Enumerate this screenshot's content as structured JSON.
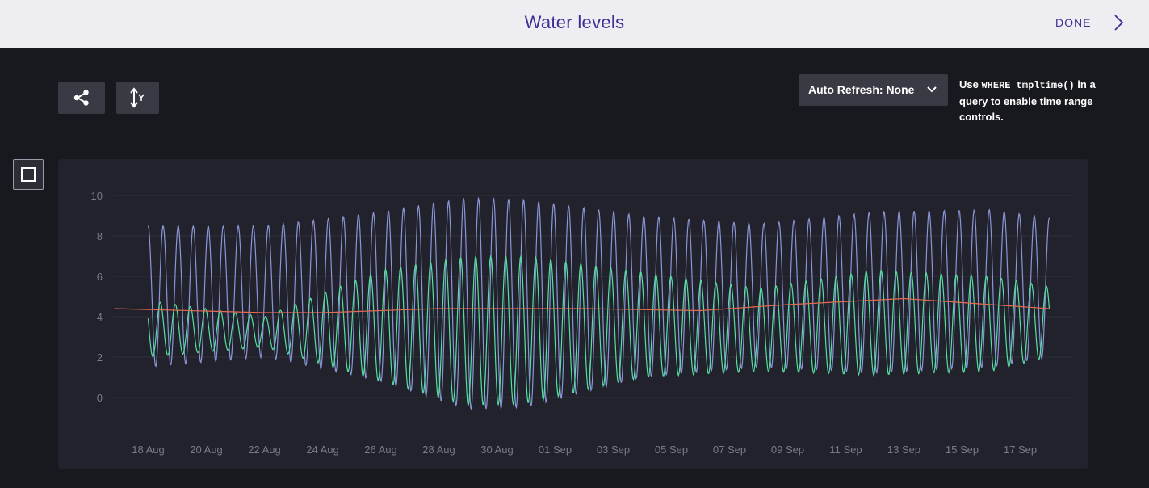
{
  "header": {
    "title": "Water levels",
    "done_label": "DONE"
  },
  "toolbar": {
    "share_icon": "share-icon",
    "axis_icon": "y-axis-toggle-icon",
    "refresh_label": "Auto Refresh: None",
    "hint_prefix": "Use ",
    "hint_code": "WHERE tmpltime()",
    "hint_suffix": " in a query to enable time range controls."
  },
  "colors": {
    "blue": "#8a95d6",
    "green": "#54e0a2",
    "red": "#e46a52",
    "accent": "#3c2f94"
  },
  "chart_data": {
    "type": "line",
    "ylim": [
      -0.6,
      10.2
    ],
    "yticks": [
      "10",
      "8",
      "6",
      "4",
      "2",
      "0"
    ],
    "ytick_values": [
      10,
      8,
      6,
      4,
      2,
      0
    ],
    "xlim": [
      "2016-08-16T19:00",
      "2016-09-18T19:00"
    ],
    "xticks": [
      "18 Aug",
      "20 Aug",
      "22 Aug",
      "24 Aug",
      "26 Aug",
      "28 Aug",
      "30 Aug",
      "01 Sep",
      "03 Sep",
      "05 Sep",
      "07 Sep",
      "09 Sep",
      "11 Sep",
      "13 Sep",
      "15 Sep",
      "17 Sep"
    ],
    "xtick_dates": [
      "2016-08-18",
      "2016-08-20",
      "2016-08-22",
      "2016-08-24",
      "2016-08-26",
      "2016-08-28",
      "2016-08-30",
      "2016-09-01",
      "2016-09-03",
      "2016-09-05",
      "2016-09-07",
      "2016-09-09",
      "2016-09-11",
      "2016-09-13",
      "2016-09-15",
      "2016-09-17"
    ],
    "series": [
      {
        "color": "#8a95d6",
        "x_start": "2016-08-18",
        "x_end": "2016-09-18",
        "period_hours": 12.4,
        "envelope_dates": [
          "2016-08-18",
          "2016-08-22",
          "2016-08-26",
          "2016-08-29",
          "2016-08-31",
          "2016-09-04",
          "2016-09-08",
          "2016-09-12",
          "2016-09-16",
          "2016-09-18"
        ],
        "high_envelope": [
          8.5,
          8.5,
          9.2,
          9.9,
          9.8,
          9.0,
          8.6,
          9.2,
          9.3,
          8.9
        ],
        "low_envelope": [
          1.5,
          2.0,
          0.8,
          -0.6,
          -0.5,
          1.0,
          1.5,
          1.2,
          1.5,
          2.0
        ]
      },
      {
        "color": "#54e0a2",
        "x_start": "2016-08-18",
        "x_end": "2016-09-18",
        "period_hours": 12.4,
        "envelope_dates": [
          "2016-08-18",
          "2016-08-22",
          "2016-08-26",
          "2016-08-29",
          "2016-08-31",
          "2016-09-04",
          "2016-09-08",
          "2016-09-12",
          "2016-09-16",
          "2016-09-18"
        ],
        "high_envelope": [
          4.8,
          4.0,
          6.3,
          7.0,
          7.0,
          6.2,
          5.4,
          6.3,
          6.0,
          5.5
        ],
        "low_envelope": [
          2.0,
          2.5,
          0.8,
          -0.4,
          -0.3,
          1.0,
          1.3,
          1.1,
          1.3,
          2.0
        ]
      },
      {
        "color": "#e46a52",
        "x": [
          "2016-08-16T20:00",
          "2016-08-22",
          "2016-08-24",
          "2016-08-28",
          "2016-09-02",
          "2016-09-06",
          "2016-09-09",
          "2016-09-13",
          "2016-09-16",
          "2016-09-18"
        ],
        "y": [
          4.4,
          4.2,
          4.2,
          4.4,
          4.4,
          4.3,
          4.6,
          4.9,
          4.6,
          4.4
        ]
      }
    ]
  }
}
